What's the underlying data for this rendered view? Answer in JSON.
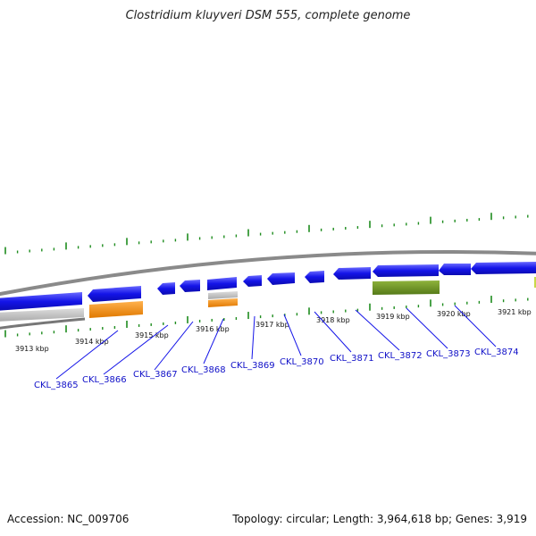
{
  "header": {
    "title": "Clostridium kluyveri DSM 555, complete genome"
  },
  "footer": {
    "accession": "Accession: NC_009706",
    "topology": "Topology: circular; Length: 3,964,618 bp; Genes: 3,919"
  },
  "colors": {
    "cds": "#1414e8",
    "rna": "#ff8c00",
    "pseudo": "#bbbbbb",
    "other_feature": "#6b8e23",
    "tick": "#1e8c1e",
    "backbone": "#888888",
    "gene_label": "#1010c8"
  },
  "icons": [
    "gene-arrow-icon"
  ],
  "kbp_labels": [
    "3913 kbp",
    "3914 kbp",
    "3915 kbp",
    "3916 kbp",
    "3917 kbp",
    "3918 kbp",
    "3919 kbp",
    "3920 kbp",
    "3921 kbp"
  ],
  "gene_labels": [
    "CKL_3865",
    "CKL_3866",
    "CKL_3867",
    "CKL_3868",
    "CKL_3869",
    "CKL_3870",
    "CKL_3871",
    "CKL_3872",
    "CKL_3873",
    "CKL_3874"
  ]
}
